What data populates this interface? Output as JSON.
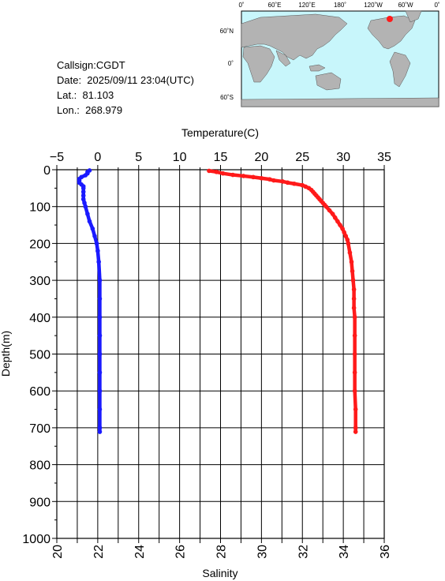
{
  "station": {
    "callsign": "Callsign:CGDT",
    "date": "Date:  2025/09/11 23:04(UTC)",
    "lat": "Lat.:  81.103",
    "lon": "Lon.:  268.979"
  },
  "map": {
    "lon_labels": [
      "0˚",
      "60˚E",
      "120˚E",
      "180˚",
      "120˚W",
      "60˚W",
      "0˚"
    ],
    "lat_labels": [
      "60˚N",
      "0˚",
      "60˚S"
    ],
    "ocean_color": "#c8f6fb",
    "land_color": "#b3b3b3",
    "marker_color": "#ff1a1a"
  },
  "chart_data": {
    "type": "line",
    "ylabel": "Depth(m)",
    "yticks": [
      "0",
      "100",
      "200",
      "300",
      "400",
      "500",
      "600",
      "700",
      "800",
      "900",
      "1000"
    ],
    "ylim": [
      0,
      1000
    ],
    "y_inverted": true,
    "grid": true,
    "temperature_axis": {
      "label": "Temperature(C)",
      "ticks": [
        "−5",
        "0",
        "5",
        "10",
        "15",
        "20",
        "25",
        "30",
        "35"
      ],
      "lim": [
        -5,
        35
      ],
      "position": "top"
    },
    "salinity_axis": {
      "label": "Salinity",
      "ticks": [
        "20",
        "22",
        "24",
        "26",
        "28",
        "30",
        "32",
        "34",
        "36"
      ],
      "lim": [
        20,
        36
      ],
      "position": "bottom"
    },
    "series": [
      {
        "axis": "temperature",
        "color": "#ff1a1a",
        "depth": [
          3,
          6,
          10,
          14,
          17,
          20,
          23,
          26,
          29,
          32,
          35,
          38,
          42,
          46,
          50,
          55,
          60,
          65,
          70,
          75,
          80,
          85,
          90,
          95,
          100,
          110,
          120,
          130,
          140,
          150,
          160,
          170,
          180,
          190,
          200,
          225,
          250,
          275,
          300,
          325,
          350,
          375,
          400,
          450,
          500,
          550,
          600,
          650,
          700,
          711
        ],
        "values": [
          13.6,
          14.5,
          15.3,
          16.5,
          17.8,
          19.0,
          20.0,
          21.0,
          21.5,
          22.6,
          23.2,
          24.0,
          25.0,
          25.4,
          25.8,
          26.1,
          26.3,
          26.5,
          26.7,
          26.9,
          27.1,
          27.3,
          27.5,
          27.7,
          27.9,
          28.3,
          28.7,
          29.0,
          29.3,
          29.6,
          29.9,
          30.1,
          30.3,
          30.5,
          30.6,
          30.8,
          31.0,
          31.1,
          31.2,
          31.3,
          31.3,
          31.3,
          31.4,
          31.4,
          31.4,
          31.4,
          31.4,
          31.5,
          31.5,
          31.5
        ]
      },
      {
        "axis": "salinity",
        "color": "#1a1aff",
        "depth": [
          2,
          6,
          10,
          15,
          20,
          25,
          30,
          35,
          40,
          45,
          50,
          60,
          70,
          80,
          90,
          100,
          120,
          140,
          160,
          180,
          200,
          220,
          250,
          300,
          350,
          400,
          450,
          500,
          550,
          600,
          650,
          700,
          711
        ],
        "values": [
          21.6,
          21.5,
          21.5,
          21.4,
          21.2,
          21.1,
          21.1,
          21.1,
          21.2,
          21.3,
          21.3,
          21.3,
          21.3,
          21.3,
          21.35,
          21.4,
          21.5,
          21.6,
          21.75,
          21.85,
          21.95,
          22.0,
          22.05,
          22.1,
          22.1,
          22.1,
          22.1,
          22.1,
          22.1,
          22.1,
          22.1,
          22.1,
          22.1
        ]
      }
    ]
  }
}
